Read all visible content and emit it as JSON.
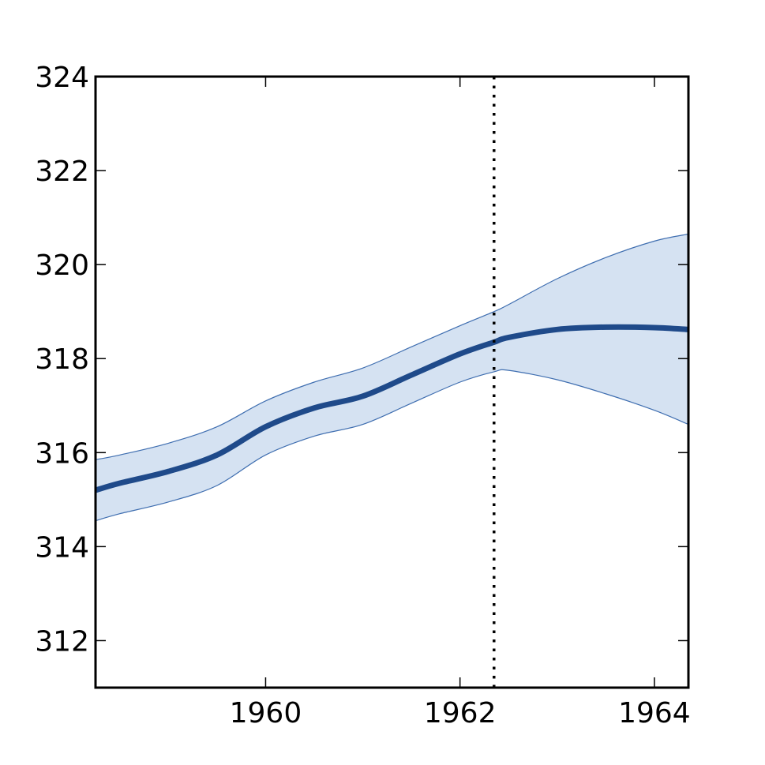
{
  "chart_data": {
    "type": "line",
    "title": "",
    "xlabel": "",
    "ylabel": "",
    "xlim": [
      1958.25,
      1964.35
    ],
    "ylim": [
      311,
      324
    ],
    "xticks": [
      1960,
      1962,
      1964
    ],
    "yticks": [
      312,
      314,
      316,
      318,
      320,
      322,
      324
    ],
    "grid": false,
    "legend": "none",
    "colors": {
      "mean_line": "#1f4a8a",
      "band_fill": "#d5e2f2",
      "band_edge": "#3f6eb0",
      "axes": "#000000",
      "vline": "#000000"
    },
    "vline": {
      "x": 1962.35,
      "style": "dotted"
    },
    "series": [
      {
        "x": [
          1958.25,
          1958.5,
          1959.0,
          1959.5,
          1960.0,
          1960.5,
          1961.0,
          1961.5,
          1962.0,
          1962.35,
          1962.5,
          1963.0,
          1963.5,
          1964.0,
          1964.35
        ],
        "values": [
          315.2,
          315.35,
          315.6,
          315.95,
          316.55,
          316.95,
          317.2,
          317.65,
          318.1,
          318.35,
          318.45,
          318.62,
          318.67,
          318.66,
          318.62
        ],
        "lower": [
          314.55,
          314.7,
          314.95,
          315.3,
          315.95,
          316.35,
          316.6,
          317.05,
          317.5,
          317.72,
          317.75,
          317.55,
          317.25,
          316.9,
          316.6
        ],
        "upper": [
          315.85,
          315.95,
          316.2,
          316.55,
          317.1,
          317.5,
          317.8,
          318.25,
          318.7,
          319.0,
          319.15,
          319.7,
          320.15,
          320.5,
          320.65
        ]
      }
    ]
  }
}
